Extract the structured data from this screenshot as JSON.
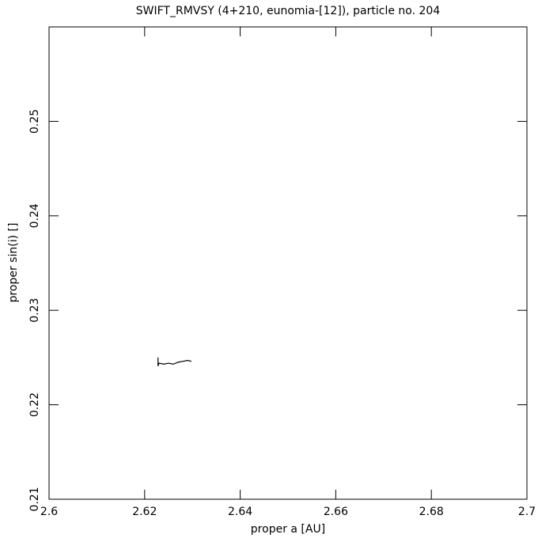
{
  "chart_data": {
    "type": "line",
    "title": "SWIFT_RMVSY (4+210, eunomia-[12]), particle no. 204",
    "x_label": "proper a [AU]",
    "y_label": "proper sin(i) []",
    "xlim": [
      2.6,
      2.7
    ],
    "xticks": [
      2.6,
      2.62,
      2.64,
      2.66,
      2.68,
      2.7
    ],
    "ylim": [
      0.21,
      0.26
    ],
    "yticks": [
      0.21,
      0.22,
      0.23,
      0.24,
      0.25
    ],
    "series": [
      {
        "color": "#000000",
        "x": [
          2.6228,
          2.6228,
          2.623,
          2.624,
          2.625,
          2.626,
          2.627,
          2.628,
          2.629,
          2.6298
        ],
        "values": [
          0.225,
          0.2241,
          0.2244,
          0.2243,
          0.2244,
          0.2243,
          0.2245,
          0.2246,
          0.2247,
          0.2246
        ]
      }
    ]
  }
}
